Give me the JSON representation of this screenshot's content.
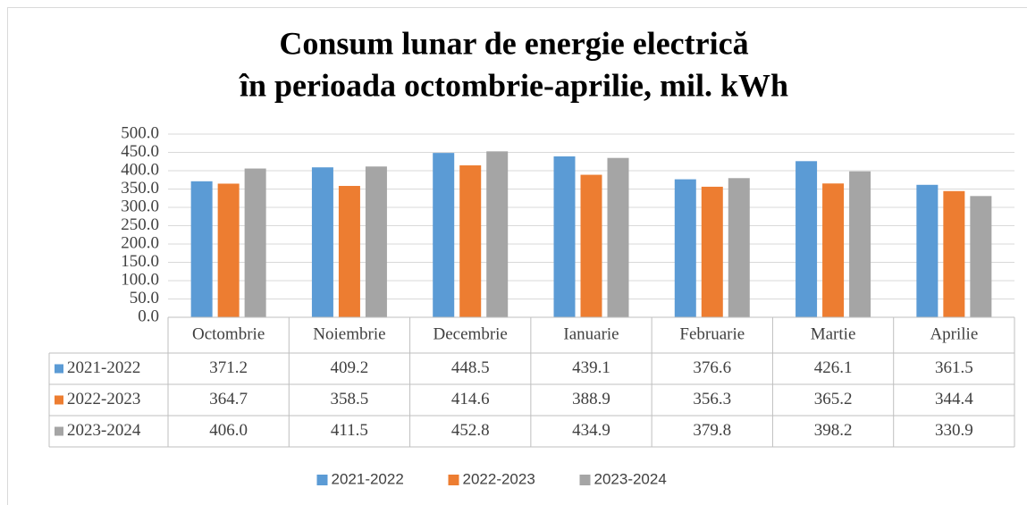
{
  "chart_data": {
    "type": "bar",
    "title": [
      "Consum lunar de energie electrică",
      "în perioada octombrie-aprilie, mil. kWh"
    ],
    "categories": [
      "Octombrie",
      "Noiembrie",
      "Decembrie",
      "Ianuarie",
      "Februarie",
      "Martie",
      "Aprilie"
    ],
    "series": [
      {
        "name": "2021-2022",
        "color": "#5b9bd5",
        "values": [
          371.2,
          409.2,
          448.5,
          439.1,
          376.6,
          426.1,
          361.5
        ],
        "value_labels": [
          "371.2",
          "409.2",
          "448.5",
          "439.1",
          "376.6",
          "426.1",
          "361.5"
        ]
      },
      {
        "name": "2022-2023",
        "color": "#ed7d31",
        "values": [
          364.7,
          358.5,
          414.6,
          388.9,
          356.3,
          365.2,
          344.4
        ],
        "value_labels": [
          "364.7",
          "358.5",
          "414.6",
          "388.9",
          "356.3",
          "365.2",
          "344.4"
        ]
      },
      {
        "name": "2023-2024",
        "color": "#a5a5a5",
        "values": [
          406.0,
          411.5,
          452.8,
          434.9,
          379.8,
          398.2,
          330.9
        ],
        "value_labels": [
          "406.0",
          "411.5",
          "452.8",
          "434.9",
          "379.8",
          "398.2",
          "330.9"
        ]
      }
    ],
    "ylim": [
      0,
      500
    ],
    "yticks": [
      {
        "value": 0,
        "label": "0.0"
      },
      {
        "value": 50,
        "label": "50.0"
      },
      {
        "value": 100,
        "label": "100.0"
      },
      {
        "value": 150,
        "label": "150.0"
      },
      {
        "value": 200,
        "label": "200.0"
      },
      {
        "value": 250,
        "label": "250.0"
      },
      {
        "value": 300,
        "label": "300.0"
      },
      {
        "value": 350,
        "label": "350.0"
      },
      {
        "value": 400,
        "label": "400.0"
      },
      {
        "value": 450,
        "label": "450.0"
      },
      {
        "value": 500,
        "label": "500.0"
      }
    ],
    "grid": true,
    "legend": "bottom"
  }
}
